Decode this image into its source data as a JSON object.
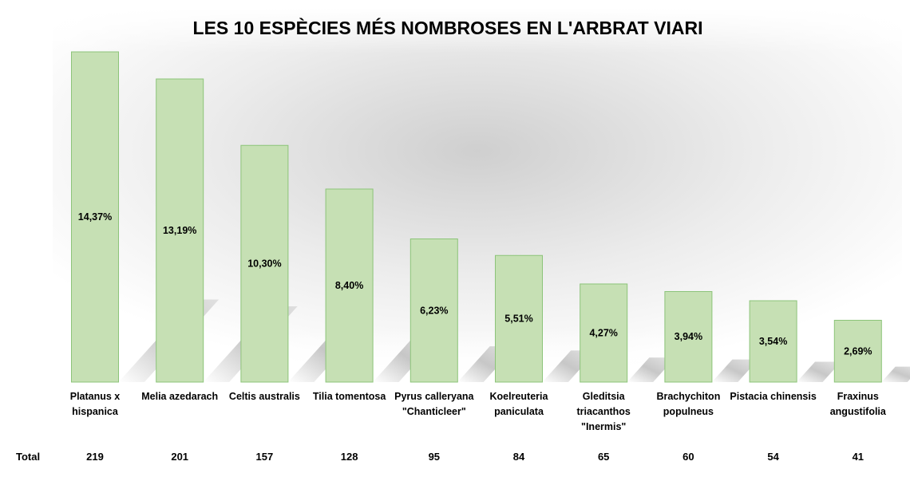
{
  "chart_data": {
    "type": "bar",
    "title": "LES 10 ESPÈCIES MÉS NOMBROSES EN L'ARBRAT VIARI",
    "categories": [
      [
        "Platanus x",
        "hispanica"
      ],
      [
        "Melia azedarach"
      ],
      [
        "Celtis australis"
      ],
      [
        "Tilia tomentosa"
      ],
      [
        "Pyrus calleryana",
        "\"Chanticleer\""
      ],
      [
        "Koelreuteria",
        "paniculata"
      ],
      [
        "Gleditsia",
        "triacanthos",
        "\"Inermis\""
      ],
      [
        "Brachychiton",
        "populneus"
      ],
      [
        "Pistacia chinensis"
      ],
      [
        "Fraxinus",
        "angustifolia"
      ]
    ],
    "values": [
      14.37,
      13.19,
      10.3,
      8.4,
      6.23,
      5.51,
      4.27,
      3.94,
      3.54,
      2.69
    ],
    "data_labels": [
      "14,37%",
      "13,19%",
      "10,30%",
      "8,40%",
      "6,23%",
      "5,51%",
      "4,27%",
      "3,94%",
      "3,54%",
      "2,69%"
    ],
    "table_row": {
      "label": "Total",
      "values": [
        "219",
        "201",
        "157",
        "128",
        "95",
        "84",
        "65",
        "60",
        "54",
        "41"
      ]
    },
    "ylim": [
      0,
      14.37
    ],
    "grid": false,
    "legend": "none",
    "colors": {
      "bar_fill": "#c6e0b4",
      "bar_stroke": "#8cc479"
    }
  }
}
